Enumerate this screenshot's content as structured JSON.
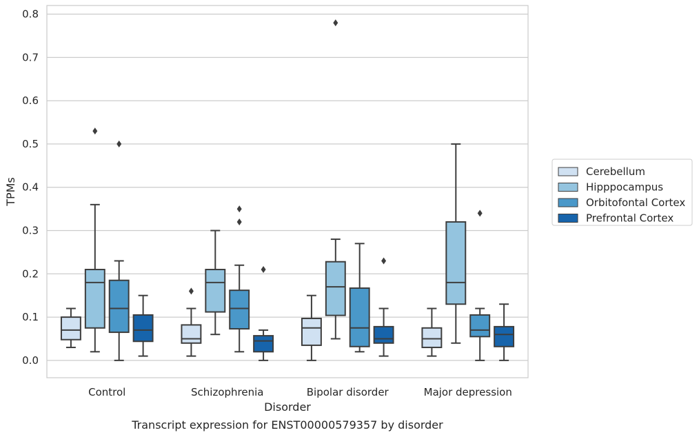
{
  "chart_data": {
    "type": "box",
    "caption": "Transcript expression for ENST00000579357 by disorder",
    "xlabel": "Disorder",
    "ylabel": "TPMs",
    "ylim": [
      -0.04,
      0.82
    ],
    "yticks": [
      0.0,
      0.1,
      0.2,
      0.3,
      0.4,
      0.5,
      0.6,
      0.7,
      0.8
    ],
    "ytick_labels": [
      "0.0",
      "0.1",
      "0.2",
      "0.3",
      "0.4",
      "0.5",
      "0.6",
      "0.7",
      "0.8"
    ],
    "grid": "horizontal",
    "legend_position": "right",
    "categories": [
      "Control",
      "Schizophrenia",
      "Bipolar disorder",
      "Major depression"
    ],
    "series": [
      {
        "name": "Cerebellum",
        "color": "#d0e1f2",
        "boxes": [
          {
            "whislo": 0.03,
            "q1": 0.048,
            "med": 0.07,
            "q3": 0.1,
            "whishi": 0.12,
            "fliers": []
          },
          {
            "whislo": 0.01,
            "q1": 0.04,
            "med": 0.05,
            "q3": 0.082,
            "whishi": 0.12,
            "fliers": [
              0.16
            ]
          },
          {
            "whislo": 0.0,
            "q1": 0.035,
            "med": 0.075,
            "q3": 0.097,
            "whishi": 0.15,
            "fliers": []
          },
          {
            "whislo": 0.01,
            "q1": 0.03,
            "med": 0.05,
            "q3": 0.075,
            "whishi": 0.12,
            "fliers": []
          }
        ]
      },
      {
        "name": "Hipppocampus",
        "color": "#94c4df",
        "boxes": [
          {
            "whislo": 0.02,
            "q1": 0.075,
            "med": 0.18,
            "q3": 0.21,
            "whishi": 0.36,
            "fliers": [
              0.53
            ]
          },
          {
            "whislo": 0.06,
            "q1": 0.112,
            "med": 0.18,
            "q3": 0.21,
            "whishi": 0.3,
            "fliers": []
          },
          {
            "whislo": 0.05,
            "q1": 0.104,
            "med": 0.17,
            "q3": 0.228,
            "whishi": 0.28,
            "fliers": [
              0.78
            ]
          },
          {
            "whislo": 0.04,
            "q1": 0.13,
            "med": 0.18,
            "q3": 0.32,
            "whishi": 0.5,
            "fliers": []
          }
        ]
      },
      {
        "name": "Orbitofontal Cortex",
        "color": "#4a98c9",
        "boxes": [
          {
            "whislo": 0.0,
            "q1": 0.065,
            "med": 0.12,
            "q3": 0.185,
            "whishi": 0.23,
            "fliers": [
              0.5
            ]
          },
          {
            "whislo": 0.02,
            "q1": 0.073,
            "med": 0.12,
            "q3": 0.162,
            "whishi": 0.22,
            "fliers": [
              0.32,
              0.35
            ]
          },
          {
            "whislo": 0.02,
            "q1": 0.032,
            "med": 0.075,
            "q3": 0.167,
            "whishi": 0.27,
            "fliers": []
          },
          {
            "whislo": 0.0,
            "q1": 0.055,
            "med": 0.07,
            "q3": 0.105,
            "whishi": 0.12,
            "fliers": [
              0.34
            ]
          }
        ]
      },
      {
        "name": "Prefrontal Cortex",
        "color": "#1764ab",
        "boxes": [
          {
            "whislo": 0.01,
            "q1": 0.044,
            "med": 0.07,
            "q3": 0.105,
            "whishi": 0.15,
            "fliers": []
          },
          {
            "whislo": 0.0,
            "q1": 0.02,
            "med": 0.045,
            "q3": 0.057,
            "whishi": 0.07,
            "fliers": [
              0.21
            ]
          },
          {
            "whislo": 0.01,
            "q1": 0.04,
            "med": 0.05,
            "q3": 0.078,
            "whishi": 0.12,
            "fliers": [
              0.23
            ]
          },
          {
            "whislo": 0.0,
            "q1": 0.032,
            "med": 0.06,
            "q3": 0.078,
            "whishi": 0.13,
            "fliers": []
          }
        ]
      }
    ]
  }
}
